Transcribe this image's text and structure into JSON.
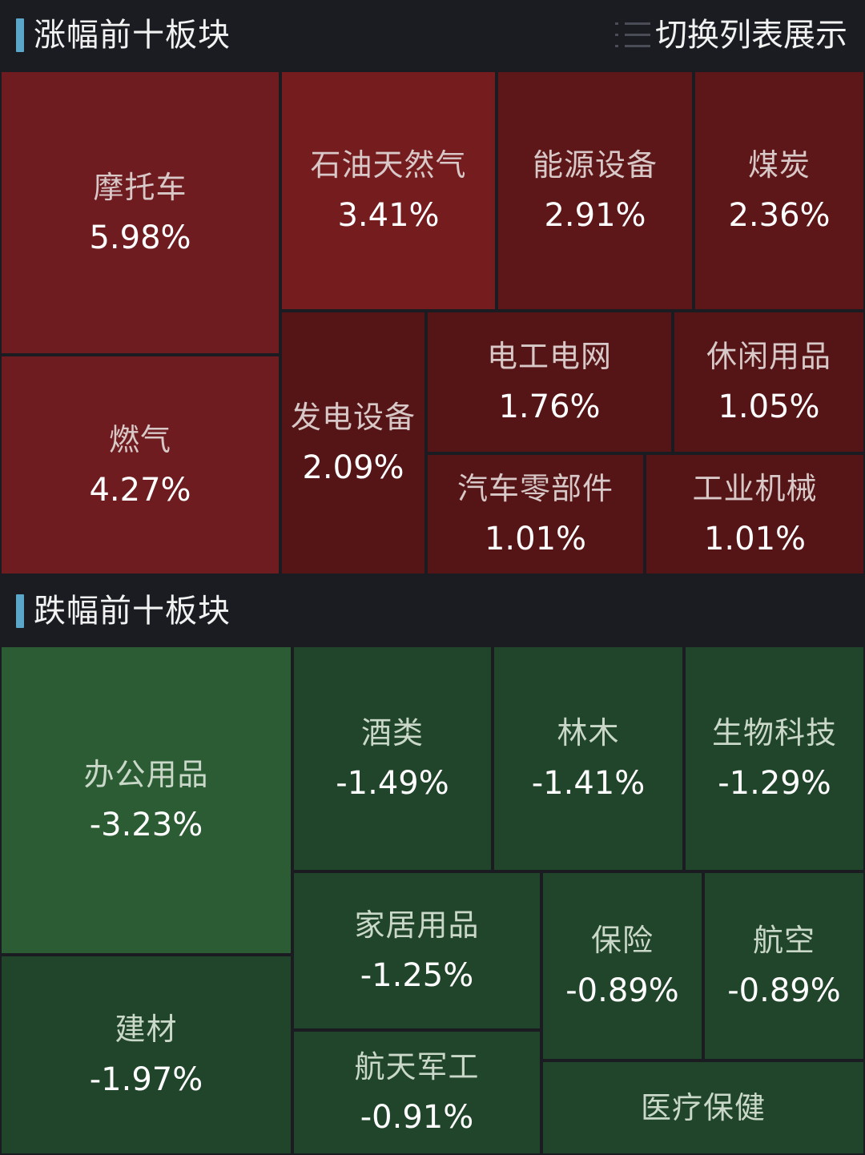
{
  "rise_section": {
    "title": "涨幅前十板块",
    "switch_label": "切换列表展示",
    "switch_icon": "list-icon",
    "tiles": [
      {
        "name": "摩托车",
        "change": "5.98%",
        "color": "#6e1c1f"
      },
      {
        "name": "燃气",
        "change": "4.27%",
        "color": "#6e1c1f"
      },
      {
        "name": "石油天然气",
        "change": "3.41%",
        "color": "#751c1f"
      },
      {
        "name": "能源设备",
        "change": "2.91%",
        "color": "#5e1718"
      },
      {
        "name": "煤炭",
        "change": "2.36%",
        "color": "#5e1718"
      },
      {
        "name": "发电设备",
        "change": "2.09%",
        "color": "#551516"
      },
      {
        "name": "电工电网",
        "change": "1.76%",
        "color": "#551516"
      },
      {
        "name": "休闲用品",
        "change": "1.05%",
        "color": "#551516"
      },
      {
        "name": "汽车零部件",
        "change": "1.01%",
        "color": "#551516"
      },
      {
        "name": "工业机械",
        "change": "1.01%",
        "color": "#551516"
      }
    ]
  },
  "fall_section": {
    "title": "跌幅前十板块",
    "tiles": [
      {
        "name": "办公用品",
        "change": "-3.23%",
        "color": "#2c5c33"
      },
      {
        "name": "建材",
        "change": "-1.97%",
        "color": "#21452a"
      },
      {
        "name": "酒类",
        "change": "-1.49%",
        "color": "#21452a"
      },
      {
        "name": "林木",
        "change": "-1.41%",
        "color": "#21452a"
      },
      {
        "name": "生物科技",
        "change": "-1.29%",
        "color": "#21452a"
      },
      {
        "name": "家居用品",
        "change": "-1.25%",
        "color": "#21452a"
      },
      {
        "name": "保险",
        "change": "-0.89%",
        "color": "#21452a"
      },
      {
        "name": "航空",
        "change": "-0.89%",
        "color": "#21452a"
      },
      {
        "name": "航天军工",
        "change": "-0.91%",
        "color": "#21452a"
      },
      {
        "name": "医疗保健",
        "change": "",
        "color": "#21452a"
      }
    ]
  }
}
